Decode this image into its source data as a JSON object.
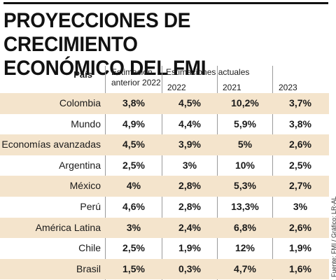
{
  "title": {
    "line1": "PROYECCIONES DE CRECIMIENTO",
    "line2": "ECONÓMICO DEL FMI"
  },
  "source": "Fuente: FMI / Gráfico: LR-AL",
  "chart_data": {
    "type": "table",
    "headers": {
      "country": "País",
      "prev_estimate": [
        "Estimación",
        "anterior 2022"
      ],
      "current_estimates": "Estimaciones actuales",
      "years": [
        "2022",
        "2021",
        "2023"
      ]
    },
    "rows": [
      {
        "country": "Colombia",
        "values": [
          "3,8%",
          "4,5%",
          "10,2%",
          "3,7%"
        ]
      },
      {
        "country": "Mundo",
        "values": [
          "4,9%",
          "4,4%",
          "5,9%",
          "3,8%"
        ]
      },
      {
        "country": "Economías avanzadas",
        "values": [
          "4,5%",
          "3,9%",
          "5%",
          "2,6%"
        ]
      },
      {
        "country": "Argentina",
        "values": [
          "2,5%",
          "3%",
          "10%",
          "2,5%"
        ]
      },
      {
        "country": "México",
        "values": [
          "4%",
          "2,8%",
          "5,3%",
          "2,7%"
        ]
      },
      {
        "country": "Perú",
        "values": [
          "4,6%",
          "2,8%",
          "13,3%",
          "3%"
        ]
      },
      {
        "country": "América Latina",
        "values": [
          "3%",
          "2,4%",
          "6,8%",
          "2,6%"
        ]
      },
      {
        "country": "Chile",
        "values": [
          "2,5%",
          "1,9%",
          "12%",
          "1,9%"
        ]
      },
      {
        "country": "Brasil",
        "values": [
          "1,5%",
          "0,3%",
          "4,7%",
          "1,6%"
        ]
      }
    ],
    "colors": {
      "row_shade": "#f4e4cc",
      "text": "#1a1a1a"
    }
  }
}
